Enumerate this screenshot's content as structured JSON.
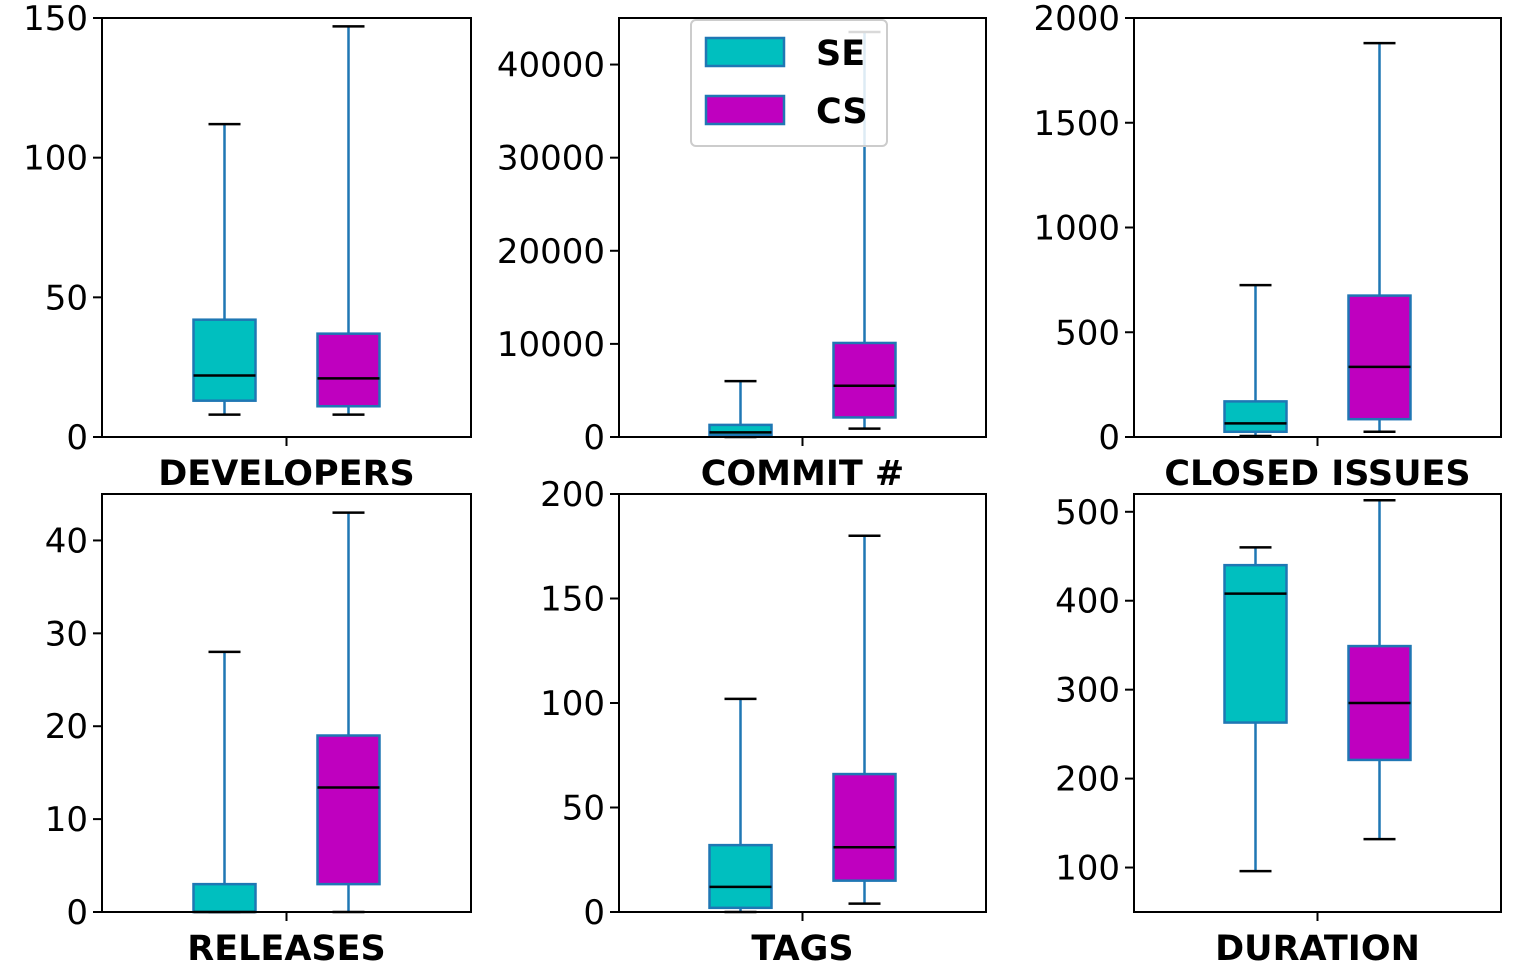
{
  "colors": {
    "se_fill": "#00bfbf",
    "cs_fill": "#bf00bf",
    "box_edge": "#1f77b4",
    "whisker": "#1f77b4",
    "median": "#000000",
    "axes": "#000000"
  },
  "legend": {
    "location": "upper-center of second subplot",
    "entries": [
      {
        "label": "SE",
        "color": "#00bfbf"
      },
      {
        "label": "CS",
        "color": "#bf00bf"
      }
    ]
  },
  "chart_data": [
    {
      "type": "box",
      "xlabel": "DEVELOPERS",
      "ylim": [
        0,
        150
      ],
      "yticks": [
        "0",
        "50",
        "100",
        "150"
      ],
      "ytick_values": [
        0,
        50,
        100,
        150
      ],
      "series": [
        {
          "name": "SE",
          "whisker_low": 8,
          "q1": 13,
          "median": 22,
          "q3": 42,
          "whisker_high": 112
        },
        {
          "name": "CS",
          "whisker_low": 8,
          "q1": 11,
          "median": 21,
          "q3": 37,
          "whisker_high": 147
        }
      ]
    },
    {
      "type": "box",
      "xlabel": "COMMIT #",
      "ylim": [
        0,
        45000
      ],
      "yticks": [
        "0",
        "10000",
        "20000",
        "30000",
        "40000"
      ],
      "ytick_values": [
        0,
        10000,
        20000,
        30000,
        40000
      ],
      "series": [
        {
          "name": "SE",
          "whisker_low": 0,
          "q1": 200,
          "median": 500,
          "q3": 1300,
          "whisker_high": 6000
        },
        {
          "name": "CS",
          "whisker_low": 900,
          "q1": 2100,
          "median": 5500,
          "q3": 10100,
          "whisker_high": 43500
        }
      ]
    },
    {
      "type": "box",
      "xlabel": "CLOSED ISSUES",
      "ylim": [
        0,
        2000
      ],
      "yticks": [
        "0",
        "500",
        "1000",
        "1500",
        "2000"
      ],
      "ytick_values": [
        0,
        500,
        1000,
        1500,
        2000
      ],
      "series": [
        {
          "name": "SE",
          "whisker_low": 5,
          "q1": 25,
          "median": 65,
          "q3": 170,
          "whisker_high": 725
        },
        {
          "name": "CS",
          "whisker_low": 25,
          "q1": 85,
          "median": 335,
          "q3": 675,
          "whisker_high": 1880
        }
      ]
    },
    {
      "type": "box",
      "xlabel": "RELEASES",
      "ylim": [
        0,
        45
      ],
      "yticks": [
        "0",
        "10",
        "20",
        "30",
        "40"
      ],
      "ytick_values": [
        0,
        10,
        20,
        30,
        40
      ],
      "series": [
        {
          "name": "SE",
          "whisker_low": 0,
          "q1": 0,
          "median": 0,
          "q3": 3,
          "whisker_high": 28
        },
        {
          "name": "CS",
          "whisker_low": 0,
          "q1": 3,
          "median": 13.4,
          "q3": 19,
          "whisker_high": 43
        }
      ]
    },
    {
      "type": "box",
      "xlabel": "TAGS",
      "ylim": [
        0,
        200
      ],
      "yticks": [
        "0",
        "50",
        "100",
        "150",
        "200"
      ],
      "ytick_values": [
        0,
        50,
        100,
        150,
        200
      ],
      "series": [
        {
          "name": "SE",
          "whisker_low": 0,
          "q1": 2,
          "median": 12,
          "q3": 32,
          "whisker_high": 102
        },
        {
          "name": "CS",
          "whisker_low": 4,
          "q1": 15,
          "median": 31,
          "q3": 66,
          "whisker_high": 180
        }
      ]
    },
    {
      "type": "box",
      "xlabel": "DURATION",
      "ylim": [
        50,
        520
      ],
      "yticks": [
        "100",
        "200",
        "300",
        "400",
        "500"
      ],
      "ytick_values": [
        100,
        200,
        300,
        400,
        500
      ],
      "series": [
        {
          "name": "SE",
          "whisker_low": 96,
          "q1": 263,
          "median": 408,
          "q3": 440,
          "whisker_high": 460
        },
        {
          "name": "CS",
          "whisker_low": 132,
          "q1": 221,
          "median": 285,
          "q3": 349,
          "whisker_high": 513
        }
      ]
    }
  ]
}
